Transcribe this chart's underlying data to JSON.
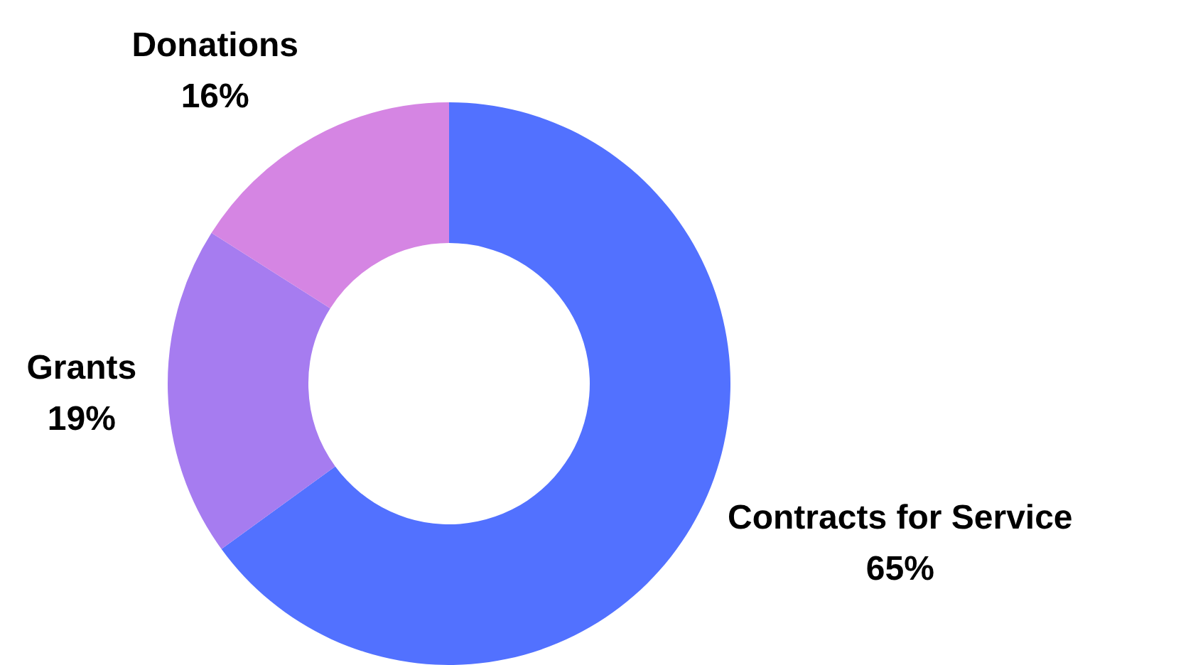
{
  "chart_data": {
    "type": "donut",
    "categories": [
      "Contracts for Service",
      "Grants",
      "Donations"
    ],
    "values": [
      65,
      19,
      16
    ],
    "colors": [
      "#5271ff",
      "#a67cf0",
      "#d585e3"
    ],
    "value_labels": [
      "65%",
      "19%",
      "16%"
    ],
    "legend": false
  }
}
